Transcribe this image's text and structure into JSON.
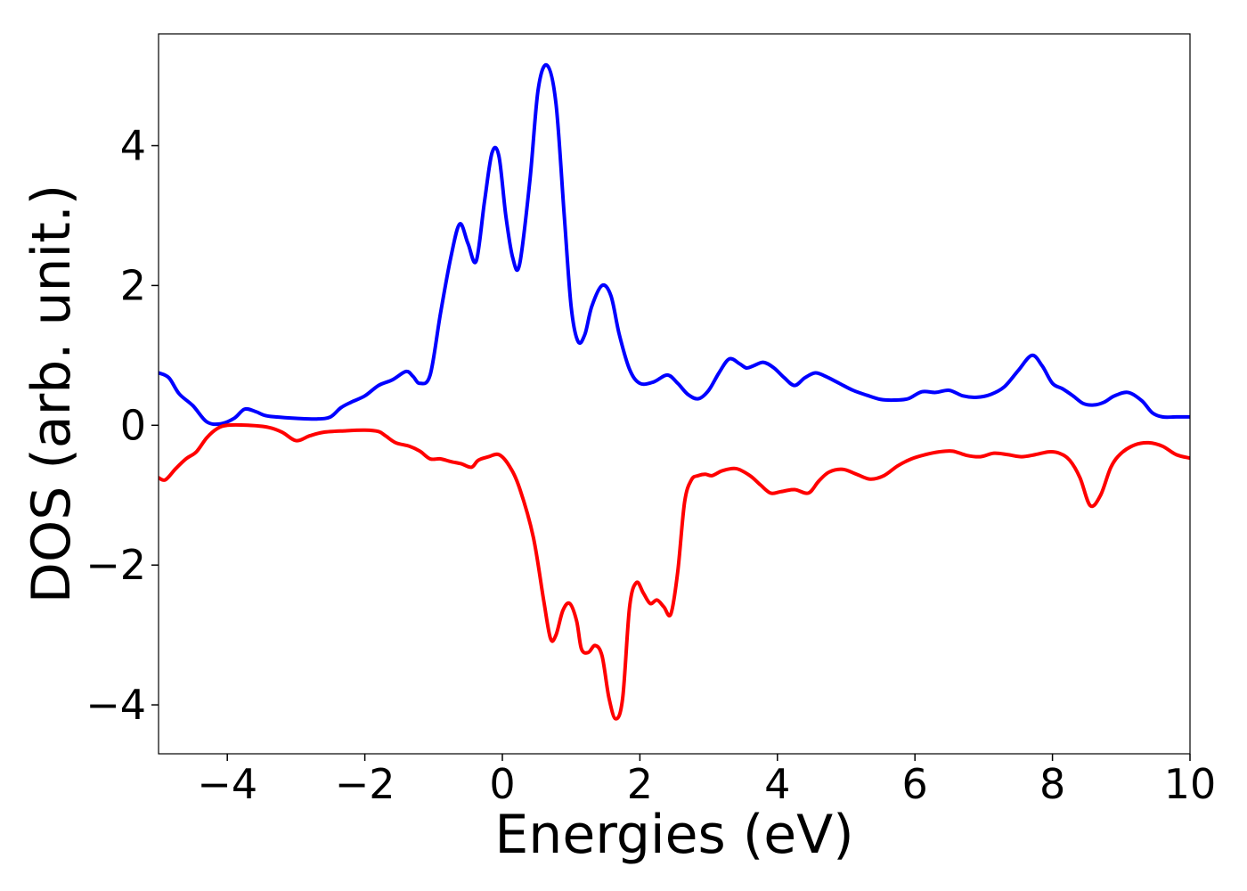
{
  "chart_data": {
    "type": "line",
    "title": "",
    "xlabel": "Energies (eV)",
    "ylabel": "DOS (arb. unit.)",
    "xlim": [
      -5,
      10
    ],
    "ylim": [
      -4.7,
      5.6
    ],
    "xticks": [
      -4,
      -2,
      0,
      2,
      4,
      6,
      8,
      10
    ],
    "yticks": [
      -4,
      -2,
      0,
      2,
      4
    ],
    "grid": false,
    "legend": "none",
    "series": [
      {
        "color": "#0000ff",
        "x": [
          -5.0,
          -4.85,
          -4.7,
          -4.5,
          -4.3,
          -4.1,
          -3.9,
          -3.75,
          -3.6,
          -3.45,
          -3.3,
          -3.0,
          -2.7,
          -2.5,
          -2.35,
          -2.2,
          -2.0,
          -1.8,
          -1.6,
          -1.4,
          -1.3,
          -1.2,
          -1.05,
          -0.9,
          -0.75,
          -0.62,
          -0.5,
          -0.38,
          -0.26,
          -0.15,
          -0.05,
          0.05,
          0.15,
          0.25,
          0.4,
          0.52,
          0.65,
          0.78,
          0.9,
          1.0,
          1.1,
          1.2,
          1.3,
          1.45,
          1.58,
          1.7,
          1.85,
          2.0,
          2.2,
          2.4,
          2.55,
          2.7,
          2.85,
          3.0,
          3.15,
          3.3,
          3.45,
          3.55,
          3.65,
          3.8,
          3.95,
          4.1,
          4.25,
          4.4,
          4.55,
          4.7,
          4.9,
          5.1,
          5.3,
          5.5,
          5.7,
          5.9,
          6.1,
          6.3,
          6.5,
          6.7,
          6.9,
          7.1,
          7.3,
          7.5,
          7.7,
          7.85,
          8.0,
          8.15,
          8.3,
          8.45,
          8.6,
          8.75,
          8.9,
          9.1,
          9.3,
          9.45,
          9.6,
          9.8,
          10.0
        ],
        "y": [
          0.75,
          0.68,
          0.45,
          0.28,
          0.05,
          0.02,
          0.1,
          0.23,
          0.2,
          0.14,
          0.12,
          0.1,
          0.09,
          0.12,
          0.25,
          0.33,
          0.42,
          0.57,
          0.65,
          0.77,
          0.7,
          0.6,
          0.72,
          1.6,
          2.4,
          2.88,
          2.6,
          2.35,
          3.2,
          3.9,
          3.85,
          3.0,
          2.4,
          2.3,
          3.5,
          4.8,
          5.15,
          4.6,
          3.0,
          1.7,
          1.2,
          1.3,
          1.7,
          2.0,
          1.85,
          1.3,
          0.8,
          0.6,
          0.62,
          0.72,
          0.6,
          0.44,
          0.38,
          0.5,
          0.75,
          0.95,
          0.88,
          0.82,
          0.85,
          0.9,
          0.82,
          0.68,
          0.57,
          0.68,
          0.75,
          0.7,
          0.6,
          0.5,
          0.43,
          0.37,
          0.36,
          0.38,
          0.48,
          0.47,
          0.5,
          0.42,
          0.4,
          0.44,
          0.55,
          0.78,
          1.0,
          0.85,
          0.6,
          0.52,
          0.42,
          0.31,
          0.29,
          0.33,
          0.42,
          0.47,
          0.35,
          0.18,
          0.12,
          0.12,
          0.12
        ]
      },
      {
        "color": "#ff0000",
        "x": [
          -5.0,
          -4.9,
          -4.75,
          -4.6,
          -4.45,
          -4.3,
          -4.15,
          -4.0,
          -3.7,
          -3.4,
          -3.2,
          -3.0,
          -2.8,
          -2.6,
          -2.3,
          -2.0,
          -1.8,
          -1.7,
          -1.55,
          -1.35,
          -1.2,
          -1.05,
          -0.9,
          -0.75,
          -0.6,
          -0.45,
          -0.35,
          -0.2,
          -0.05,
          0.1,
          0.25,
          0.45,
          0.6,
          0.7,
          0.78,
          0.88,
          0.98,
          1.08,
          1.15,
          1.25,
          1.35,
          1.45,
          1.55,
          1.65,
          1.75,
          1.85,
          1.95,
          2.05,
          2.15,
          2.25,
          2.35,
          2.45,
          2.55,
          2.65,
          2.75,
          2.85,
          2.95,
          3.05,
          3.2,
          3.4,
          3.6,
          3.75,
          3.9,
          4.05,
          4.25,
          4.45,
          4.6,
          4.75,
          4.95,
          5.15,
          5.35,
          5.55,
          5.75,
          5.95,
          6.15,
          6.35,
          6.55,
          6.75,
          6.95,
          7.15,
          7.35,
          7.55,
          7.75,
          7.95,
          8.1,
          8.25,
          8.4,
          8.55,
          8.7,
          8.85,
          9.0,
          9.2,
          9.4,
          9.6,
          9.8,
          10.0
        ],
        "y": [
          -0.75,
          -0.78,
          -0.62,
          -0.48,
          -0.38,
          -0.18,
          -0.05,
          0.0,
          0.0,
          -0.03,
          -0.1,
          -0.22,
          -0.15,
          -0.1,
          -0.08,
          -0.07,
          -0.09,
          -0.15,
          -0.25,
          -0.3,
          -0.37,
          -0.48,
          -0.48,
          -0.52,
          -0.55,
          -0.6,
          -0.5,
          -0.45,
          -0.42,
          -0.58,
          -0.9,
          -1.6,
          -2.5,
          -3.05,
          -3.0,
          -2.65,
          -2.55,
          -2.8,
          -3.2,
          -3.25,
          -3.15,
          -3.3,
          -3.9,
          -4.2,
          -3.9,
          -2.6,
          -2.25,
          -2.4,
          -2.55,
          -2.5,
          -2.6,
          -2.7,
          -2.1,
          -1.1,
          -0.78,
          -0.72,
          -0.7,
          -0.72,
          -0.65,
          -0.62,
          -0.72,
          -0.85,
          -0.97,
          -0.95,
          -0.92,
          -0.97,
          -0.8,
          -0.67,
          -0.63,
          -0.7,
          -0.77,
          -0.72,
          -0.58,
          -0.48,
          -0.42,
          -0.38,
          -0.37,
          -0.43,
          -0.45,
          -0.4,
          -0.42,
          -0.45,
          -0.42,
          -0.38,
          -0.4,
          -0.5,
          -0.75,
          -1.15,
          -1.0,
          -0.6,
          -0.4,
          -0.28,
          -0.25,
          -0.3,
          -0.42,
          -0.47
        ]
      }
    ]
  }
}
